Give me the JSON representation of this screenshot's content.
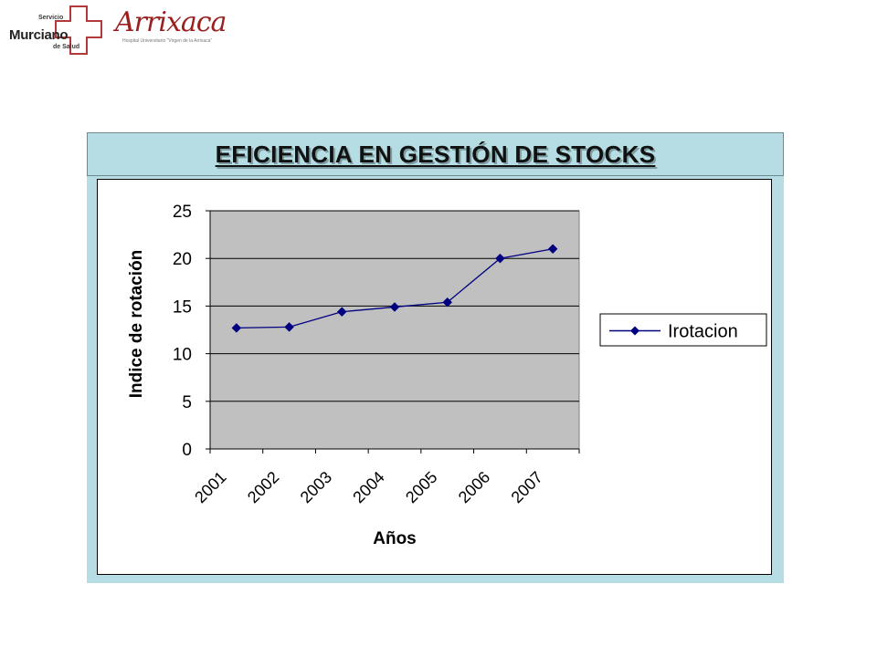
{
  "header": {
    "sms_line1": "Servicio",
    "sms_line2": "Murciano",
    "sms_line3": "de Salud",
    "arrixaca_logo_text": "Arrixaca",
    "arrixaca_subtitle": "Hospital Universitario \"Virgen de la Arrixaca\""
  },
  "slide": {
    "title": "EFICIENCIA EN GESTIÓN DE STOCKS"
  },
  "colors": {
    "frame": "#b6dde3",
    "plot_background": "#c0c0c0",
    "series": "#000080",
    "logo_red": "#9a2020"
  },
  "chart_data": {
    "type": "line",
    "categories": [
      "2001",
      "2002",
      "2003",
      "2004",
      "2005",
      "2006",
      "2007"
    ],
    "series": [
      {
        "name": "Irotacion",
        "values": [
          12.7,
          12.8,
          14.4,
          14.9,
          15.4,
          20.0,
          21.0
        ],
        "marker": "diamond"
      }
    ],
    "xlabel": "Años",
    "ylabel": "Indice de rotación",
    "ylim": [
      0,
      25
    ],
    "yticks": [
      0,
      5,
      10,
      15,
      20,
      25
    ],
    "grid": true,
    "legend": "right"
  }
}
